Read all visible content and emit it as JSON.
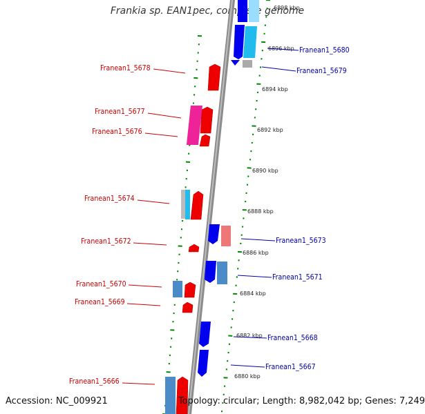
{
  "title": "Frankia sp. EAN1pec, complete genome",
  "footer": {
    "accession": "Accession: NC_009921",
    "summary": "Topology: circular; Length: 8,982,042 bp; Genes: 7,249"
  },
  "colors": {
    "plus_label": "#cc0000",
    "minus_label": "#0000aa",
    "backbone": "#888888",
    "tick": "#008800"
  },
  "kbp_ticks": [
    "6898 kbp",
    "6896 kbp",
    "6894 kbp",
    "6892 kbp",
    "6890 kbp",
    "6888 kbp",
    "6886 kbp",
    "6884 kbp",
    "6882 kbp",
    "6880 kbp"
  ],
  "genes_left": [
    "Franean1_5678",
    "Franean1_5677",
    "Franean1_5676",
    "Franean1_5674",
    "Franean1_5672",
    "Franean1_5670",
    "Franean1_5669",
    "Franean1_5666"
  ],
  "genes_right": [
    "Franean1_5680",
    "Franean1_5679",
    "Franean1_5673",
    "Franean1_5671",
    "Franean1_5668",
    "Franean1_5667"
  ]
}
